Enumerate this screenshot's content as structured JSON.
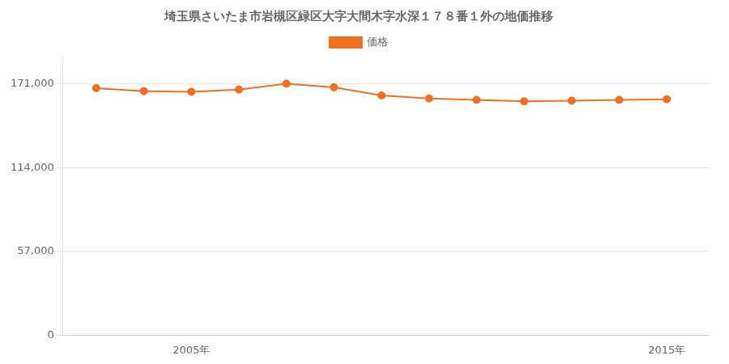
{
  "chart_data": {
    "type": "line",
    "title": "埼玉県さいたま市岩槻区緑区大字大間木字水深１７８番１外の地価推移",
    "x": [
      2003,
      2004,
      2005,
      2006,
      2007,
      2008,
      2009,
      2010,
      2011,
      2012,
      2013,
      2014,
      2015
    ],
    "series": [
      {
        "name": "価格",
        "color": "#f07020",
        "marker": "circle",
        "values": [
          168000,
          166000,
          165500,
          167000,
          171000,
          168500,
          163000,
          161000,
          160000,
          159000,
          159500,
          160000,
          160500
        ]
      }
    ],
    "xlim": [
      2002.3,
      2015.9
    ],
    "xticks": [
      {
        "value": 2005,
        "label": "2005年"
      },
      {
        "value": 2015,
        "label": "2015年"
      }
    ],
    "ylim": [
      0,
      190000
    ],
    "yticks": [
      0,
      {
        "value": 57000,
        "label": "57,000"
      },
      {
        "value": 114000,
        "label": "114,000"
      },
      {
        "value": 171000,
        "label": "171,000"
      }
    ],
    "grid": "y",
    "legend": "top"
  }
}
